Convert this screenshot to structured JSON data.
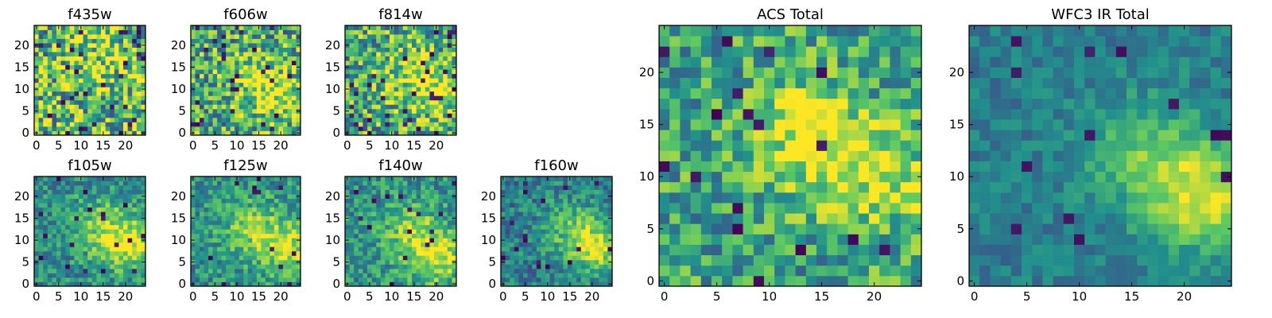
{
  "figure": {
    "colormap": [
      "#440154",
      "#3b528b",
      "#21918c",
      "#5ec962",
      "#fde725"
    ],
    "background": "#ffffff"
  },
  "chart_data": [
    {
      "type": "heatmap",
      "title": "f435w",
      "grid": 25,
      "xlim": [
        0,
        24
      ],
      "ylim": [
        0,
        24
      ],
      "xticks": [
        "0",
        "5",
        "10",
        "15",
        "20"
      ],
      "yticks": [
        "0",
        "5",
        "10",
        "15",
        "20"
      ],
      "xtick_values": [
        0,
        5,
        10,
        15,
        20
      ],
      "ytick_values": [
        0,
        5,
        10,
        15,
        20
      ],
      "base_level": 0.65,
      "noise": 0.42,
      "dark_fraction": 0.05,
      "hotspots": [
        {
          "x": 14,
          "y": 16,
          "s": 6,
          "a": 0.15
        }
      ]
    },
    {
      "type": "heatmap",
      "title": "f606w",
      "grid": 25,
      "xlim": [
        0,
        24
      ],
      "ylim": [
        0,
        24
      ],
      "xticks": [
        "0",
        "5",
        "10",
        "15",
        "20"
      ],
      "yticks": [
        "0",
        "5",
        "10",
        "15",
        "20"
      ],
      "xtick_values": [
        0,
        5,
        10,
        15,
        20
      ],
      "ytick_values": [
        0,
        5,
        10,
        15,
        20
      ],
      "base_level": 0.58,
      "noise": 0.38,
      "dark_fraction": 0.04,
      "hotspots": [
        {
          "x": 14,
          "y": 12,
          "s": 5,
          "a": 0.3
        },
        {
          "x": 21,
          "y": 7,
          "s": 4,
          "a": 0.25
        }
      ]
    },
    {
      "type": "heatmap",
      "title": "f814w",
      "grid": 25,
      "xlim": [
        0,
        24
      ],
      "ylim": [
        0,
        24
      ],
      "xticks": [
        "0",
        "5",
        "10",
        "15",
        "20"
      ],
      "yticks": [
        "0",
        "5",
        "10",
        "15",
        "20"
      ],
      "xtick_values": [
        0,
        5,
        10,
        15,
        20
      ],
      "ytick_values": [
        0,
        5,
        10,
        15,
        20
      ],
      "base_level": 0.6,
      "noise": 0.38,
      "dark_fraction": 0.04,
      "hotspots": [
        {
          "x": 15,
          "y": 13,
          "s": 5,
          "a": 0.3
        },
        {
          "x": 22,
          "y": 9,
          "s": 4,
          "a": 0.28
        }
      ]
    },
    {
      "type": "heatmap",
      "title": "f105w",
      "grid": 25,
      "xlim": [
        0,
        24
      ],
      "ylim": [
        0,
        24
      ],
      "xticks": [
        "0",
        "5",
        "10",
        "15",
        "20"
      ],
      "yticks": [
        "0",
        "5",
        "10",
        "15",
        "20"
      ],
      "xtick_values": [
        0,
        5,
        10,
        15,
        20
      ],
      "ytick_values": [
        0,
        5,
        10,
        15,
        20
      ],
      "base_level": 0.48,
      "noise": 0.22,
      "dark_fraction": 0.03,
      "hotspots": [
        {
          "x": 15,
          "y": 13,
          "s": 5,
          "a": 0.3
        },
        {
          "x": 21,
          "y": 9,
          "s": 4,
          "a": 0.4
        }
      ]
    },
    {
      "type": "heatmap",
      "title": "f125w",
      "grid": 25,
      "xlim": [
        0,
        24
      ],
      "ylim": [
        0,
        24
      ],
      "xticks": [
        "0",
        "5",
        "10",
        "15",
        "20"
      ],
      "yticks": [
        "0",
        "5",
        "10",
        "15",
        "20"
      ],
      "xtick_values": [
        0,
        5,
        10,
        15,
        20
      ],
      "ytick_values": [
        0,
        5,
        10,
        15,
        20
      ],
      "base_level": 0.5,
      "noise": 0.22,
      "dark_fraction": 0.03,
      "hotspots": [
        {
          "x": 14,
          "y": 12,
          "s": 5,
          "a": 0.3
        },
        {
          "x": 22,
          "y": 8,
          "s": 4,
          "a": 0.38
        }
      ]
    },
    {
      "type": "heatmap",
      "title": "f140w",
      "grid": 25,
      "xlim": [
        0,
        24
      ],
      "ylim": [
        0,
        24
      ],
      "xticks": [
        "0",
        "5",
        "10",
        "15",
        "20"
      ],
      "yticks": [
        "0",
        "5",
        "10",
        "15",
        "20"
      ],
      "xtick_values": [
        0,
        5,
        10,
        15,
        20
      ],
      "ytick_values": [
        0,
        5,
        10,
        15,
        20
      ],
      "base_level": 0.5,
      "noise": 0.22,
      "dark_fraction": 0.03,
      "hotspots": [
        {
          "x": 15,
          "y": 11,
          "s": 5,
          "a": 0.32
        },
        {
          "x": 21,
          "y": 6,
          "s": 4,
          "a": 0.4
        }
      ]
    },
    {
      "type": "heatmap",
      "title": "f160w",
      "grid": 25,
      "xlim": [
        0,
        24
      ],
      "ylim": [
        0,
        24
      ],
      "xticks": [
        "0",
        "5",
        "10",
        "15",
        "20"
      ],
      "yticks": [
        "0",
        "5",
        "10",
        "15",
        "20"
      ],
      "xtick_values": [
        0,
        5,
        10,
        15,
        20
      ],
      "ytick_values": [
        0,
        5,
        10,
        15,
        20
      ],
      "base_level": 0.42,
      "noise": 0.2,
      "dark_fraction": 0.02,
      "hotspots": [
        {
          "x": 16,
          "y": 12,
          "s": 5,
          "a": 0.3
        },
        {
          "x": 22,
          "y": 8,
          "s": 4,
          "a": 0.42
        }
      ]
    },
    {
      "type": "heatmap",
      "title": "ACS Total",
      "grid": 25,
      "xlim": [
        0,
        24
      ],
      "ylim": [
        0,
        24
      ],
      "xticks": [
        "0",
        "5",
        "10",
        "15",
        "20"
      ],
      "yticks": [
        "0",
        "5",
        "10",
        "15",
        "20"
      ],
      "xtick_values": [
        0,
        5,
        10,
        15,
        20
      ],
      "ytick_values": [
        0,
        5,
        10,
        15,
        20
      ],
      "base_level": 0.58,
      "noise": 0.28,
      "dark_fraction": 0.035,
      "hotspots": [
        {
          "x": 14,
          "y": 13,
          "s": 3.5,
          "a": 0.35
        },
        {
          "x": 21,
          "y": 10,
          "s": 3.5,
          "a": 0.35
        },
        {
          "x": 13,
          "y": 17,
          "s": 3,
          "a": 0.15
        }
      ]
    },
    {
      "type": "heatmap",
      "title": "WFC3 IR Total",
      "grid": 25,
      "xlim": [
        0,
        24
      ],
      "ylim": [
        0,
        24
      ],
      "xticks": [
        "0",
        "5",
        "10",
        "15",
        "20"
      ],
      "yticks": [
        "0",
        "5",
        "10",
        "15",
        "20"
      ],
      "xtick_values": [
        0,
        5,
        10,
        15,
        20
      ],
      "ytick_values": [
        0,
        5,
        10,
        15,
        20
      ],
      "base_level": 0.42,
      "noise": 0.12,
      "dark_fraction": 0.015,
      "hotspots": [
        {
          "x": 16,
          "y": 12,
          "s": 4,
          "a": 0.3
        },
        {
          "x": 22,
          "y": 8,
          "s": 3.5,
          "a": 0.5
        }
      ]
    }
  ]
}
